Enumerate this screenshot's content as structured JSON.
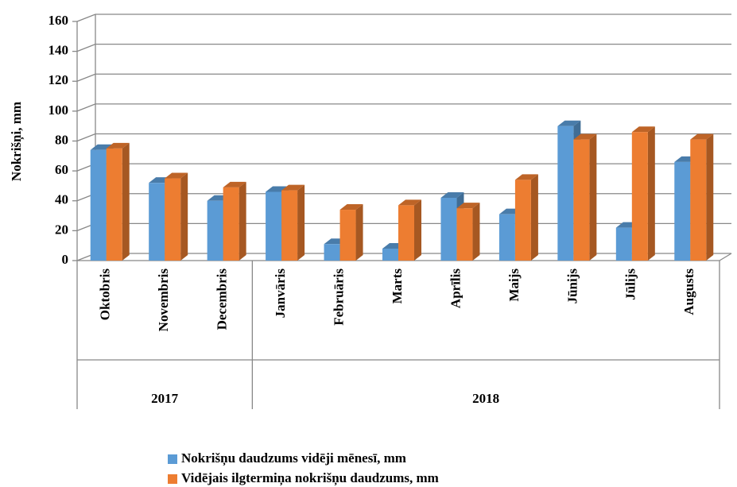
{
  "chart_data": {
    "type": "bar",
    "y_axis_label": "Nokrišņi, mm",
    "groups": [
      {
        "name": "2017",
        "categories": [
          "Oktobris",
          "Novembris",
          "Decembris"
        ]
      },
      {
        "name": "2018",
        "categories": [
          "Janvāris",
          "Februāris",
          "Marts",
          "Aprīlis",
          "Maijs",
          "Jūnijs",
          "Jūlijs",
          "Augusts"
        ]
      }
    ],
    "series": [
      {
        "name": "Nokrišņu daudzums vidēji mēnesī, mm",
        "color": "#5b9bd5",
        "values": [
          74,
          52,
          40,
          46,
          11,
          8,
          42,
          31,
          90,
          22,
          66
        ]
      },
      {
        "name": "Vidējais ilgtermiņa nokrišņu daudzums, mm",
        "color": "#ed7d31",
        "values": [
          75,
          55,
          49,
          47,
          34,
          37,
          35,
          54,
          81,
          86,
          81
        ]
      }
    ],
    "ylim": [
      0,
      160
    ],
    "yticks": [
      0,
      20,
      40,
      60,
      80,
      100,
      120,
      140,
      160
    ],
    "grid": true
  }
}
